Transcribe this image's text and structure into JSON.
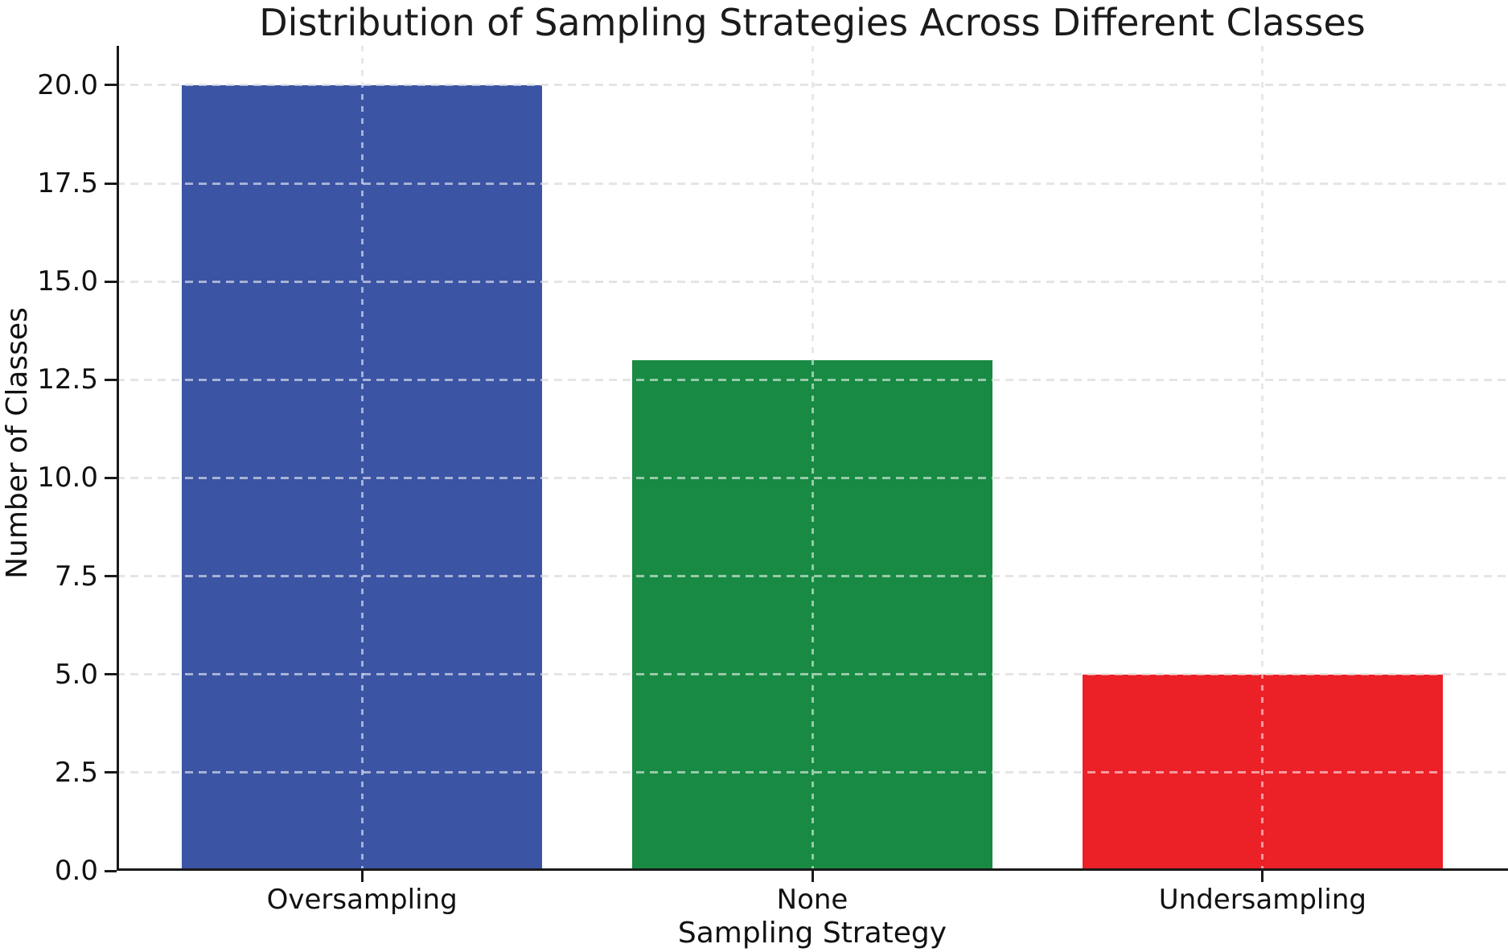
{
  "chart_data": {
    "type": "bar",
    "title": "Distribution of Sampling Strategies Across Different Classes",
    "xlabel": "Sampling Strategy",
    "ylabel": "Number of Classes",
    "categories": [
      "Oversampling",
      "None",
      "Undersampling"
    ],
    "values": [
      20,
      13,
      5
    ],
    "bar_colors": [
      "#3b54a4",
      "#188a43",
      "#ec2027"
    ],
    "bar_width": 0.8,
    "xlim": [
      -0.545,
      2.545
    ],
    "ylim": [
      0,
      21
    ],
    "yticks": [
      0,
      2.5,
      5,
      7.5,
      10,
      12.5,
      15,
      17.5,
      20
    ],
    "ytick_labels": [
      "0.0",
      "2.5",
      "5.0",
      "7.5",
      "10.0",
      "12.5",
      "15.0",
      "17.5",
      "20.0"
    ],
    "grid": "both-axes, dashed, drawn over bars with light alpha",
    "legend": "none",
    "styles": {
      "grid_color": "#c6c6c6",
      "grid_overlay_color": "rgba(255,255,255,0.55)",
      "spine_color": "#1a1a1a",
      "text_color": "#111111",
      "background": "#ffffff"
    }
  }
}
